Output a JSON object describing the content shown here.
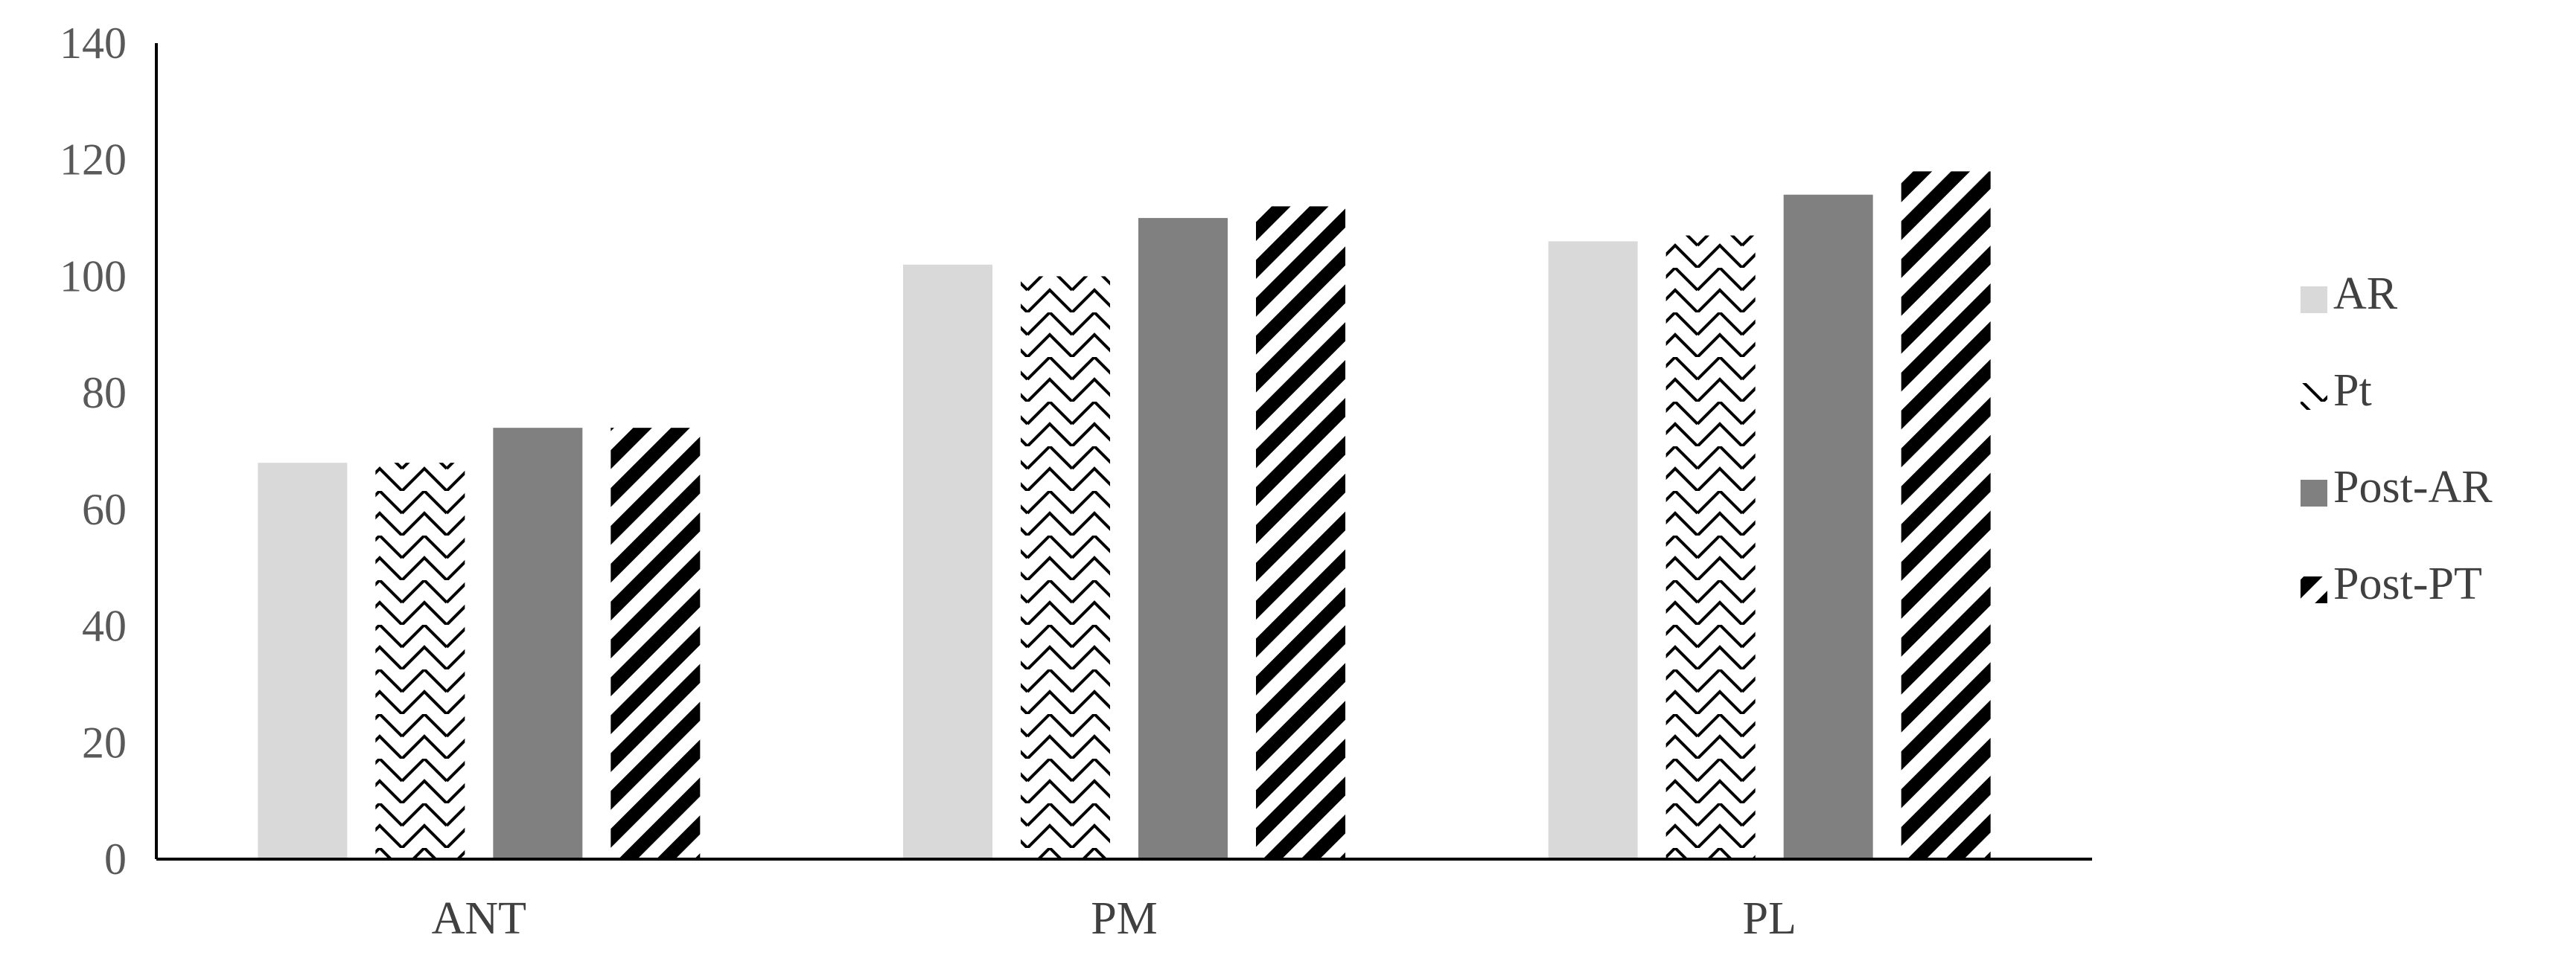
{
  "chart_data": {
    "type": "bar",
    "categories": [
      "ANT",
      "PM",
      "PL"
    ],
    "series": [
      {
        "name": "AR",
        "values": [
          68,
          102,
          106
        ],
        "color": "#d9d9d9",
        "pattern": "solid"
      },
      {
        "name": "Pt",
        "values": [
          68,
          100,
          107
        ],
        "color": "#ffffff",
        "pattern": "zigzag"
      },
      {
        "name": "Post-AR",
        "values": [
          74,
          110,
          114
        ],
        "color": "#808080",
        "pattern": "solid"
      },
      {
        "name": "Post-PT",
        "values": [
          74,
          112,
          118
        ],
        "color": "#000000",
        "pattern": "diagonal"
      }
    ],
    "ylim": [
      0,
      140
    ],
    "yticks": [
      0,
      20,
      40,
      60,
      80,
      100,
      120,
      140
    ],
    "title": "",
    "xlabel": "",
    "ylabel": "",
    "grid": false,
    "legend": "right"
  }
}
